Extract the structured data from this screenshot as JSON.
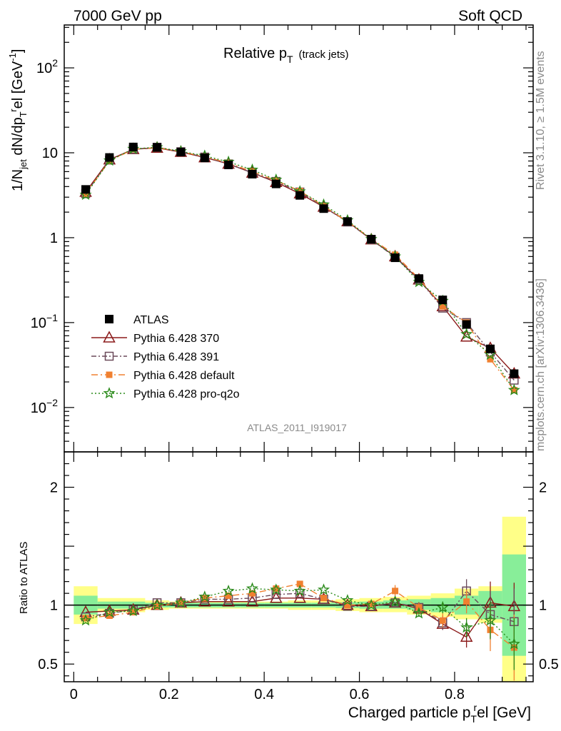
{
  "header": {
    "left": "7000 GeV pp",
    "right": "Soft QCD"
  },
  "side_labels": {
    "rivet": "Rivet 3.1.10, ≥ 1.5M events",
    "mcplots": "mcplots.cern.ch [arXiv:1306.3436]"
  },
  "analysis_id": "ATLAS_2011_I919017",
  "colors": {
    "ATLAS": "#000000",
    "370": "#8b1a1a",
    "391": "#6b4a5a",
    "default": "#f08030",
    "pro-q2o": "#2a8a1a",
    "band_yellow": "#ffff88",
    "band_green": "#88ee99"
  },
  "chart_data": [
    {
      "type": "line",
      "title": "Relative p",
      "title_sub": "T",
      "title_suffix": "(track jets)",
      "ylabel_parts": [
        "1/N",
        "jet",
        " dN/dp",
        "T",
        "r",
        "el [GeV",
        "-1",
        "]"
      ],
      "y_scale": "log",
      "ylim": [
        0.003,
        320
      ],
      "xlim": [
        -0.02,
        0.965
      ],
      "y_ticks": [
        {
          "v": 100,
          "base": "10",
          "exp": "2"
        },
        {
          "v": 10,
          "base": "10",
          "exp": ""
        },
        {
          "v": 1,
          "base": "1",
          "exp": ""
        },
        {
          "v": 0.1,
          "base": "10",
          "exp": "−1"
        },
        {
          "v": 0.01,
          "base": "10",
          "exp": "−2"
        }
      ],
      "legend": {
        "position": "bottom-left",
        "entries": [
          "ATLAS",
          "Pythia 6.428 370",
          "Pythia 6.428 391",
          "Pythia 6.428 default",
          "Pythia 6.428 pro-q2o"
        ]
      },
      "x": [
        0.025,
        0.075,
        0.125,
        0.175,
        0.225,
        0.275,
        0.325,
        0.375,
        0.425,
        0.475,
        0.525,
        0.575,
        0.625,
        0.675,
        0.725,
        0.775,
        0.825,
        0.875,
        0.925
      ],
      "series": [
        {
          "name": "ATLAS",
          "key": "ATLAS",
          "values": [
            3.7,
            8.8,
            11.7,
            11.6,
            10.2,
            8.7,
            7.2,
            5.6,
            4.3,
            3.15,
            2.2,
            1.55,
            0.96,
            0.58,
            0.33,
            0.185,
            0.095,
            0.049,
            0.025
          ]
        },
        {
          "name": "Pythia 6.428 370",
          "key": "370",
          "values": [
            3.45,
            8.3,
            11.0,
            11.4,
            10.2,
            8.8,
            7.4,
            5.8,
            4.5,
            3.3,
            2.3,
            1.55,
            0.95,
            0.6,
            0.32,
            0.155,
            0.068,
            0.05,
            0.025
          ]
        },
        {
          "name": "Pythia 6.428 391",
          "key": "391",
          "values": [
            3.3,
            8.2,
            11.0,
            11.6,
            10.3,
            8.9,
            7.4,
            5.8,
            4.6,
            3.45,
            2.3,
            1.53,
            0.95,
            0.59,
            0.32,
            0.148,
            0.1,
            0.045,
            0.021
          ]
        },
        {
          "name": "Pythia 6.428 default",
          "key": "default",
          "values": [
            3.3,
            8.0,
            11.0,
            11.5,
            10.3,
            9.0,
            7.6,
            6.0,
            4.7,
            3.55,
            2.35,
            1.55,
            0.97,
            0.63,
            0.33,
            0.155,
            0.1,
            0.037,
            0.016
          ]
        },
        {
          "name": "Pythia 6.428 pro-q2o",
          "key": "pro-q2o",
          "values": [
            3.2,
            8.1,
            11.1,
            11.6,
            10.4,
            9.2,
            7.8,
            6.3,
            4.8,
            3.5,
            2.45,
            1.6,
            0.96,
            0.6,
            0.3,
            0.18,
            0.073,
            0.042,
            0.016
          ]
        }
      ]
    },
    {
      "type": "line",
      "xlabel_parts": [
        "Charged particle p",
        "T",
        "r",
        "el [GeV]"
      ],
      "ylabel": "Ratio to ATLAS",
      "ylim": [
        0.35,
        2.3
      ],
      "xlim": [
        -0.02,
        0.965
      ],
      "y_ticks": [
        0.5,
        1,
        2
      ],
      "x_ticks": [
        0,
        0.2,
        0.4,
        0.6,
        0.8
      ],
      "x_tick_labels": [
        "0",
        "0.2",
        "0.4",
        "0.6",
        "0.8"
      ],
      "x_edges": [
        0.0,
        0.05,
        0.1,
        0.15,
        0.2,
        0.25,
        0.3,
        0.35,
        0.4,
        0.45,
        0.5,
        0.55,
        0.6,
        0.65,
        0.7,
        0.75,
        0.8,
        0.85,
        0.9,
        0.95
      ],
      "band_yellow": {
        "lo": [
          0.84,
          0.94,
          0.94,
          0.96,
          0.97,
          0.97,
          0.97,
          0.97,
          0.97,
          0.96,
          0.96,
          0.95,
          0.94,
          0.94,
          0.92,
          0.9,
          0.88,
          0.85,
          0.35
        ],
        "hi": [
          1.16,
          1.06,
          1.06,
          1.04,
          1.03,
          1.03,
          1.03,
          1.03,
          1.03,
          1.04,
          1.04,
          1.05,
          1.06,
          1.07,
          1.08,
          1.1,
          1.14,
          1.16,
          1.75
        ]
      },
      "band_green": {
        "lo": [
          0.92,
          0.97,
          0.97,
          0.98,
          0.98,
          0.98,
          0.98,
          0.98,
          0.98,
          0.98,
          0.98,
          0.975,
          0.97,
          0.97,
          0.96,
          0.94,
          0.92,
          0.88,
          0.57
        ]
      },
      "band_green_hi": [
        1.08,
        1.03,
        1.03,
        1.02,
        1.02,
        1.02,
        1.02,
        1.02,
        1.02,
        1.02,
        1.02,
        1.025,
        1.03,
        1.04,
        1.05,
        1.06,
        1.08,
        1.12,
        1.43
      ],
      "x": [
        0.025,
        0.075,
        0.125,
        0.175,
        0.225,
        0.275,
        0.325,
        0.375,
        0.425,
        0.475,
        0.525,
        0.575,
        0.625,
        0.675,
        0.725,
        0.775,
        0.825,
        0.875,
        0.925
      ],
      "series": [
        {
          "name": "Pythia 6.428 370",
          "key": "370",
          "values": [
            0.94,
            0.95,
            0.96,
            1.0,
            1.02,
            1.03,
            1.03,
            1.03,
            1.06,
            1.06,
            1.05,
            1.0,
            0.99,
            1.02,
            0.97,
            0.84,
            0.73,
            1.02,
            0.99
          ],
          "err": [
            0,
            0,
            0,
            0,
            0,
            0,
            0,
            0,
            0,
            0,
            0,
            0,
            0,
            0,
            0.03,
            0.05,
            0.09,
            0.18,
            0.2
          ]
        },
        {
          "name": "Pythia 6.428 391",
          "key": "391",
          "values": [
            0.9,
            0.93,
            0.96,
            1.02,
            1.02,
            1.05,
            1.05,
            1.06,
            1.09,
            1.1,
            1.05,
            0.99,
            0.99,
            1.02,
            0.98,
            0.85,
            1.12,
            0.92,
            0.86
          ],
          "err": [
            0,
            0,
            0,
            0,
            0,
            0,
            0,
            0,
            0,
            0,
            0,
            0,
            0,
            0,
            0.03,
            0.06,
            0.1,
            0.2,
            0.28
          ]
        },
        {
          "name": "Pythia 6.428 default",
          "key": "default",
          "values": [
            0.89,
            0.91,
            0.94,
            0.99,
            1.02,
            1.06,
            1.08,
            1.1,
            1.14,
            1.18,
            1.06,
            1.0,
            1.01,
            1.12,
            0.98,
            0.87,
            1.03,
            0.79,
            0.64
          ],
          "err": [
            0,
            0,
            0,
            0,
            0,
            0,
            0,
            0,
            0,
            0,
            0,
            0,
            0,
            0.05,
            0.04,
            0.06,
            0.1,
            0.18,
            0.28
          ]
        },
        {
          "name": "Pythia 6.428 pro-q2o",
          "key": "pro-q2o",
          "values": [
            0.87,
            0.94,
            0.95,
            1.0,
            1.02,
            1.07,
            1.12,
            1.14,
            1.13,
            1.12,
            1.13,
            1.04,
            1.0,
            1.03,
            0.93,
            0.98,
            0.81,
            0.87,
            0.67
          ],
          "err": [
            0,
            0,
            0,
            0,
            0,
            0,
            0,
            0,
            0,
            0,
            0,
            0,
            0,
            0,
            0.03,
            0.05,
            0.08,
            0.16,
            0.22
          ]
        }
      ]
    }
  ]
}
